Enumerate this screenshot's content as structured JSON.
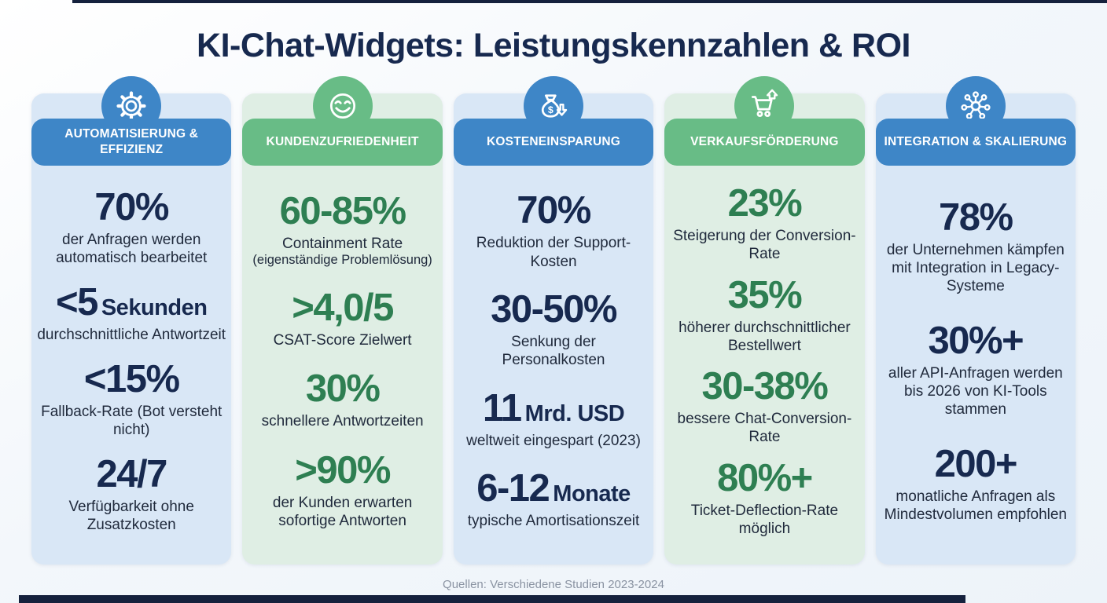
{
  "title": "KI-Chat-Widgets: Leistungskennzahlen & ROI",
  "footer": "Quellen: Verschiedene Studien 2023-2024",
  "colors": {
    "blue": "#3e86c7",
    "green": "#68bc86",
    "navy": "#17294f",
    "navy_dark": "#15213d",
    "dark_green": "#2e7f52",
    "card_blue": "#d9e7f6",
    "card_green": "#dfeee4",
    "text": "#202a3c"
  },
  "columns": [
    {
      "theme": "blue",
      "icon": "gear-icon",
      "header": "AUTOMATISIERUNG & EFFIZIENZ",
      "stats": [
        {
          "value": "70%",
          "label": "der Anfragen werden automatisch bearbeitet"
        },
        {
          "value": "<5",
          "unit": "Sekunden",
          "label": "durchschnittliche Antwortzeit"
        },
        {
          "value": "<15%",
          "label": "Fallback-Rate (Bot versteht nicht)"
        },
        {
          "value": "24/7",
          "label": "Verfügbarkeit ohne Zusatzkosten"
        }
      ]
    },
    {
      "theme": "green",
      "icon": "smiley-icon",
      "header": "KUNDENZUFRIEDENHEIT",
      "stats": [
        {
          "value": "60-85%",
          "label": "Containment Rate",
          "sublabel": "(eigenständige Problemlösung)"
        },
        {
          "value": ">4,0/5",
          "label": "CSAT-Score Zielwert"
        },
        {
          "value": "30%",
          "label": "schnellere Antwortzeiten"
        },
        {
          "value": ">90%",
          "label": "der Kunden erwarten sofortige Antworten"
        }
      ]
    },
    {
      "theme": "blue",
      "icon": "money-bag-icon",
      "header": "KOSTENEINSPARUNG",
      "stats": [
        {
          "value": "70%",
          "label": "Reduktion der Support-Kosten"
        },
        {
          "value": "30-50%",
          "label": "Senkung der Personalkosten"
        },
        {
          "value": "11",
          "unit": "Mrd. USD",
          "label": "weltweit eingespart (2023)"
        },
        {
          "value": "6-12",
          "unit": "Monate",
          "label": "typische Amortisationszeit"
        }
      ]
    },
    {
      "theme": "green",
      "icon": "cart-up-icon",
      "header": "VERKAUFSFÖRDERUNG",
      "stats": [
        {
          "value": "23%",
          "label": "Steigerung der Conversion-Rate"
        },
        {
          "value": "35%",
          "label": "höherer durchschnittlicher Bestellwert"
        },
        {
          "value": "30-38%",
          "label": "bessere Chat-Conversion-Rate"
        },
        {
          "value": "80%+",
          "label": "Ticket-Deflection-Rate möglich"
        }
      ]
    },
    {
      "theme": "blue",
      "icon": "network-icon",
      "header": "INTEGRATION & SKALIERUNG",
      "stats": [
        {
          "value": "78%",
          "label": "der Unternehmen kämpfen mit Integration in Legacy-Systeme"
        },
        {
          "value": "30%+",
          "label": "aller API-Anfragen werden bis 2026 von KI-Tools stammen"
        },
        {
          "value": "200+",
          "label": "monatliche Anfragen als Mindestvolumen empfohlen"
        }
      ]
    }
  ]
}
